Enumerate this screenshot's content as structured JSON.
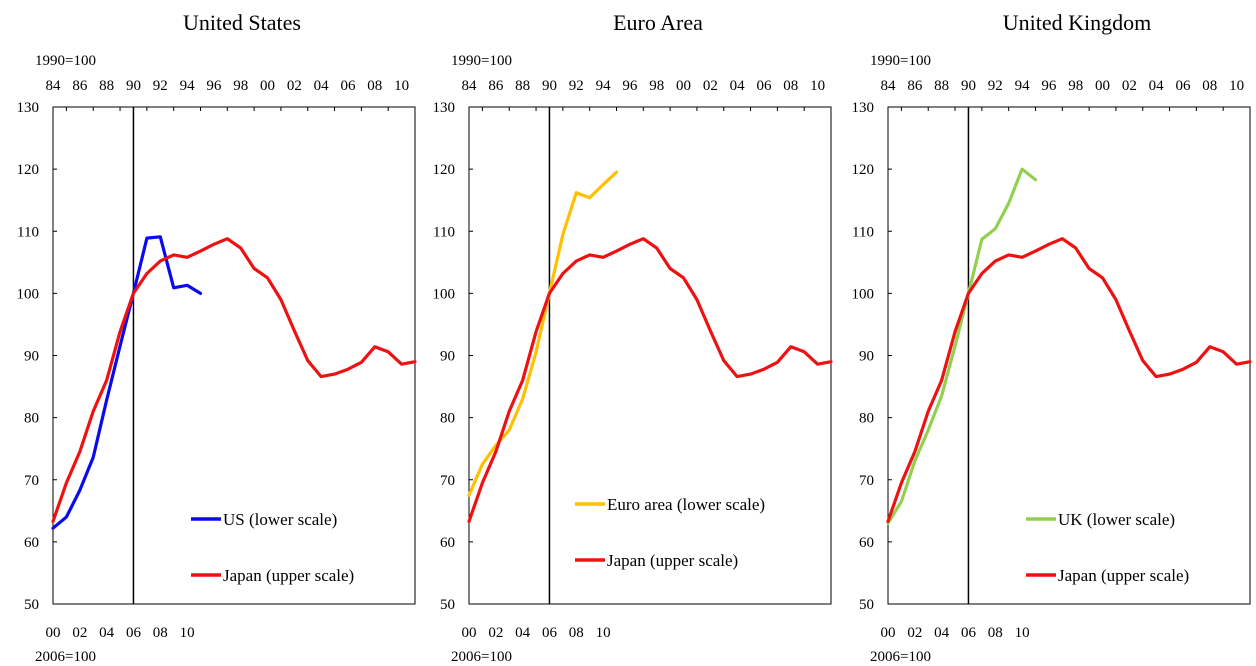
{
  "chart_data": [
    {
      "type": "line",
      "title": "United States",
      "upper_axis": {
        "base_label": "1990=100",
        "tick_labels": [
          "84",
          "86",
          "88",
          "90",
          "92",
          "94",
          "96",
          "98",
          "00",
          "02",
          "04",
          "06",
          "08",
          "10"
        ]
      },
      "lower_axis": {
        "base_label": "2006=100",
        "tick_labels": [
          "00",
          "02",
          "04",
          "06",
          "08",
          "10"
        ]
      },
      "y_ticks": [
        "50",
        "60",
        "70",
        "80",
        "90",
        "100",
        "110",
        "120",
        "130"
      ],
      "ylim": [
        50,
        130
      ],
      "series": [
        {
          "name": "US (lower scale)",
          "axis": "lower",
          "color": "#0a0aee",
          "x": [
            2000,
            2001,
            2002,
            2003,
            2004,
            2005,
            2006,
            2007,
            2008,
            2009,
            2010,
            2011
          ],
          "y": [
            62.2,
            64.0,
            68.3,
            73.6,
            82.8,
            91.5,
            100.0,
            108.9,
            109.1,
            100.9,
            101.3,
            100.0
          ]
        },
        {
          "name": "Japan (upper scale)",
          "axis": "upper",
          "color": "#ee1111",
          "x": [
            1984,
            1985,
            1986,
            1987,
            1988,
            1989,
            1990,
            1991,
            1992,
            1993,
            1994,
            1995,
            1996,
            1997,
            1998,
            1999,
            2000,
            2001,
            2002,
            2003,
            2004,
            2005,
            2006,
            2007,
            2008,
            2009,
            2010,
            2011
          ],
          "y": [
            63.3,
            69.5,
            74.5,
            81.0,
            86.0,
            93.8,
            100.0,
            103.2,
            105.2,
            106.2,
            105.8,
            106.8,
            107.9,
            108.8,
            107.3,
            104.0,
            102.5,
            99.0,
            94.0,
            89.2,
            86.6,
            87.0,
            87.8,
            88.9,
            91.4,
            90.6,
            88.6,
            89.0
          ]
        }
      ],
      "vertical_marker": "90",
      "legend_position": "bottom-right",
      "grid": false
    },
    {
      "type": "line",
      "title": "Euro Area",
      "upper_axis": {
        "base_label": "1990=100",
        "tick_labels": [
          "84",
          "86",
          "88",
          "90",
          "92",
          "94",
          "96",
          "98",
          "00",
          "02",
          "04",
          "06",
          "08",
          "10"
        ]
      },
      "lower_axis": {
        "base_label": "2006=100",
        "tick_labels": [
          "00",
          "02",
          "04",
          "06",
          "08",
          "10"
        ]
      },
      "y_ticks": [
        "50",
        "60",
        "70",
        "80",
        "90",
        "100",
        "110",
        "120",
        "130"
      ],
      "ylim": [
        50,
        130
      ],
      "series": [
        {
          "name": "Euro area (lower scale)",
          "axis": "lower",
          "color": "#ffc000",
          "x": [
            2000,
            2001,
            2002,
            2003,
            2004,
            2005,
            2006,
            2007,
            2008,
            2009,
            2010,
            2011
          ],
          "y": [
            67.5,
            72.5,
            75.5,
            78.0,
            83.0,
            90.5,
            100.0,
            109.5,
            116.2,
            115.4,
            117.5,
            119.5
          ]
        },
        {
          "name": "Japan (upper scale)",
          "axis": "upper",
          "color": "#ee1111",
          "x": [
            1984,
            1985,
            1986,
            1987,
            1988,
            1989,
            1990,
            1991,
            1992,
            1993,
            1994,
            1995,
            1996,
            1997,
            1998,
            1999,
            2000,
            2001,
            2002,
            2003,
            2004,
            2005,
            2006,
            2007,
            2008,
            2009,
            2010,
            2011
          ],
          "y": [
            63.3,
            69.5,
            74.5,
            81.0,
            86.0,
            93.8,
            100.0,
            103.2,
            105.2,
            106.2,
            105.8,
            106.8,
            107.9,
            108.8,
            107.3,
            104.0,
            102.5,
            99.0,
            94.0,
            89.2,
            86.6,
            87.0,
            87.8,
            88.9,
            91.4,
            90.6,
            88.6,
            89.0
          ]
        }
      ],
      "vertical_marker": "90",
      "legend_position": "bottom-right",
      "grid": false
    },
    {
      "type": "line",
      "title": "United Kingdom",
      "upper_axis": {
        "base_label": "1990=100",
        "tick_labels": [
          "84",
          "86",
          "88",
          "90",
          "92",
          "94",
          "96",
          "98",
          "00",
          "02",
          "04",
          "06",
          "08",
          "10"
        ]
      },
      "lower_axis": {
        "base_label": "2006=100",
        "tick_labels": [
          "00",
          "02",
          "04",
          "06",
          "08",
          "10"
        ]
      },
      "y_ticks": [
        "50",
        "60",
        "70",
        "80",
        "90",
        "100",
        "110",
        "120",
        "130"
      ],
      "ylim": [
        50,
        130
      ],
      "series": [
        {
          "name": "UK (lower scale)",
          "axis": "lower",
          "color": "#92d050",
          "x": [
            2000,
            2001,
            2002,
            2003,
            2004,
            2005,
            2006,
            2007,
            2008,
            2009,
            2010,
            2011
          ],
          "y": [
            63.0,
            66.5,
            73.0,
            78.0,
            83.5,
            91.5,
            100.0,
            108.7,
            110.4,
            114.5,
            120.0,
            118.3
          ]
        },
        {
          "name": "Japan (upper scale)",
          "axis": "upper",
          "color": "#ee1111",
          "x": [
            1984,
            1985,
            1986,
            1987,
            1988,
            1989,
            1990,
            1991,
            1992,
            1993,
            1994,
            1995,
            1996,
            1997,
            1998,
            1999,
            2000,
            2001,
            2002,
            2003,
            2004,
            2005,
            2006,
            2007,
            2008,
            2009,
            2010,
            2011
          ],
          "y": [
            63.3,
            69.5,
            74.5,
            81.0,
            86.0,
            93.8,
            100.0,
            103.2,
            105.2,
            106.2,
            105.8,
            106.8,
            107.9,
            108.8,
            107.3,
            104.0,
            102.5,
            99.0,
            94.0,
            89.2,
            86.6,
            87.0,
            87.8,
            88.9,
            91.4,
            90.6,
            88.6,
            89.0
          ]
        }
      ],
      "vertical_marker": "90",
      "legend_position": "bottom-right",
      "grid": false
    }
  ]
}
